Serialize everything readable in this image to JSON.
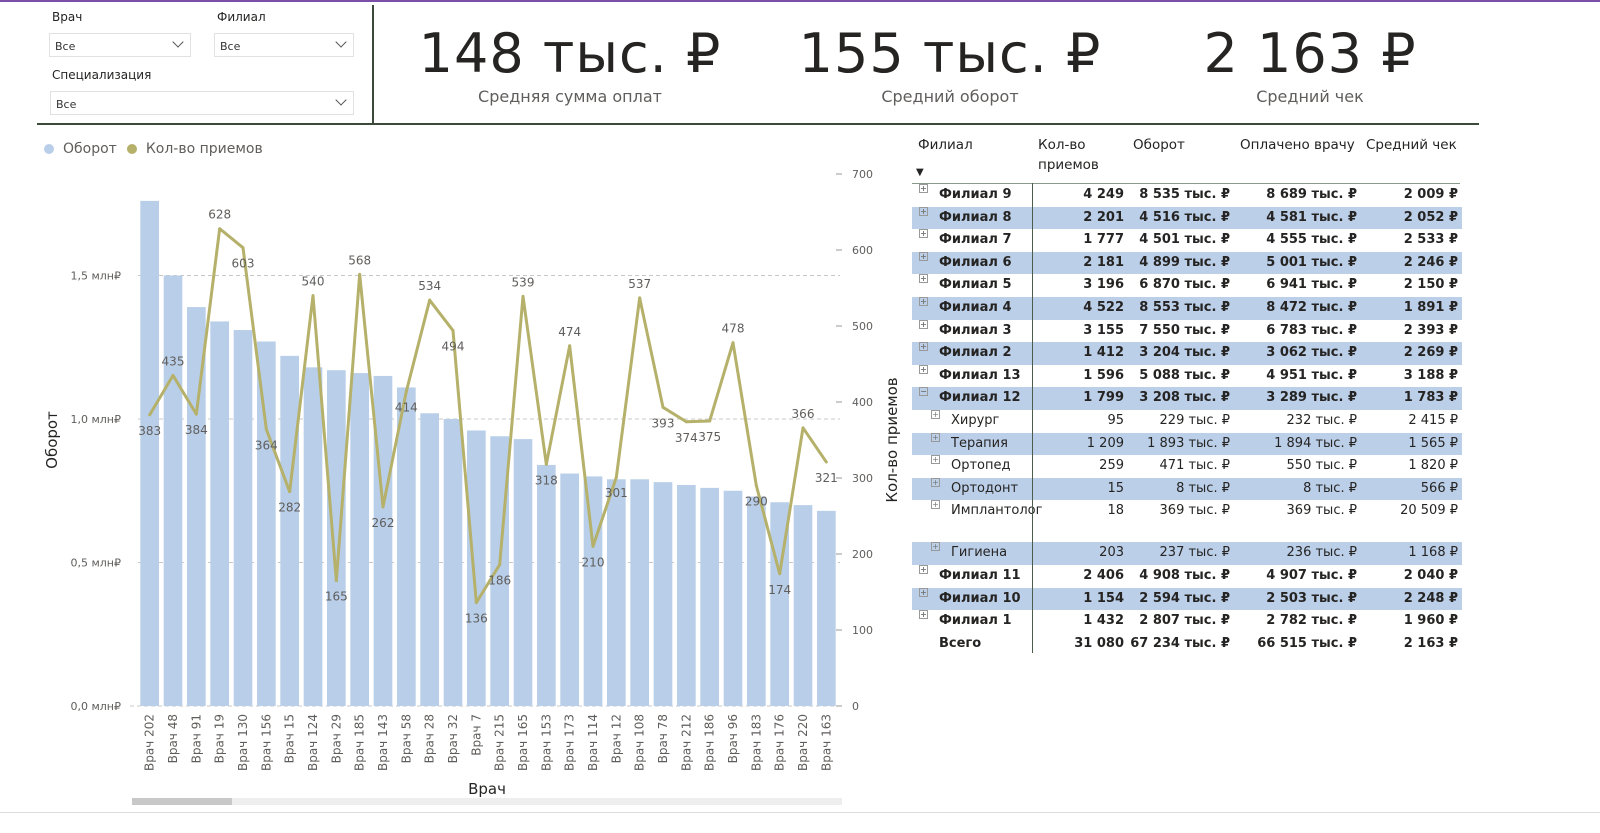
{
  "filters": {
    "doctor": {
      "label": "Врач",
      "value": "Все"
    },
    "branch": {
      "label": "Филиал",
      "value": "Все"
    },
    "specialization": {
      "label": "Специализация",
      "value": "Все"
    }
  },
  "kpis": [
    {
      "value": "148 тыс. ₽",
      "caption": "Средняя сумма оплат"
    },
    {
      "value": "155 тыс. ₽",
      "caption": "Средний оборот"
    },
    {
      "value": "2 163 ₽",
      "caption": "Средний чек"
    }
  ],
  "colors": {
    "bar": "#b9cfe9",
    "line": "#b5b16b",
    "band": "#bccfe8"
  },
  "chart_data": {
    "type": "bar+line",
    "legend": [
      "Оборот",
      "Кол-во приемов"
    ],
    "legend_position": "top-left",
    "xlabel": "Врач",
    "ylabel": "Оборот",
    "y2label": "Кол-во приемов",
    "categories": [
      "Врач 202",
      "Врач 48",
      "Врач 91",
      "Врач 19",
      "Врач 130",
      "Врач 156",
      "Врач 15",
      "Врач 124",
      "Врач 29",
      "Врач 185",
      "Врач 143",
      "Врач 58",
      "Врач 28",
      "Врач 32",
      "Врач 7",
      "Врач 215",
      "Врач 165",
      "Врач 153",
      "Врач 173",
      "Врач 114",
      "Врач 12",
      "Врач 108",
      "Врач 78",
      "Врач 212",
      "Врач 186",
      "Врач 96",
      "Врач 183",
      "Врач 176",
      "Врач 220",
      "Врач 163"
    ],
    "series": [
      {
        "name": "Оборот",
        "axis": "left",
        "unit": "млн ₽",
        "values": [
          1.76,
          1.5,
          1.39,
          1.34,
          1.31,
          1.27,
          1.22,
          1.18,
          1.17,
          1.16,
          1.15,
          1.11,
          1.02,
          1.0,
          0.96,
          0.94,
          0.93,
          0.84,
          0.81,
          0.8,
          0.79,
          0.79,
          0.78,
          0.77,
          0.76,
          0.75,
          0.73,
          0.71,
          0.7,
          0.68
        ]
      },
      {
        "name": "Кол-во приемов",
        "axis": "right",
        "values": [
          383,
          435,
          384,
          628,
          603,
          364,
          282,
          540,
          165,
          568,
          262,
          414,
          534,
          494,
          136,
          186,
          539,
          318,
          474,
          210,
          301,
          537,
          393,
          374,
          375,
          478,
          290,
          174,
          366,
          321
        ]
      }
    ],
    "y_ticks": [
      {
        "v": 0,
        "label": "0,0 млн₽"
      },
      {
        "v": 0.5,
        "label": "0,5 млн₽"
      },
      {
        "v": 1.0,
        "label": "1,0 млн₽"
      },
      {
        "v": 1.5,
        "label": "1,5 млн₽"
      }
    ],
    "y2_ticks": [
      0,
      100,
      200,
      300,
      400,
      500,
      600,
      700
    ],
    "ylim": [
      0,
      1.85
    ],
    "y2lim": [
      0,
      700
    ]
  },
  "table": {
    "headers": [
      "Филиал",
      "Кол-во приемов",
      "Оборот",
      "Оплачено врачу",
      "Средний чек"
    ],
    "rows": [
      {
        "name": "Филиал 9",
        "c": "4 249",
        "o": "8 535 тыс. ₽",
        "p": "8 689 тыс. ₽",
        "a": "2 009 ₽",
        "lvl": 0,
        "exp": "⊞"
      },
      {
        "name": "Филиал 8",
        "c": "2 201",
        "o": "4 516 тыс. ₽",
        "p": "4 581 тыс. ₽",
        "a": "2 052 ₽",
        "lvl": 0,
        "exp": "⊞"
      },
      {
        "name": "Филиал 7",
        "c": "1 777",
        "o": "4 501 тыс. ₽",
        "p": "4 555 тыс. ₽",
        "a": "2 533 ₽",
        "lvl": 0,
        "exp": "⊞"
      },
      {
        "name": "Филиал 6",
        "c": "2 181",
        "o": "4 899 тыс. ₽",
        "p": "5 001 тыс. ₽",
        "a": "2 246 ₽",
        "lvl": 0,
        "exp": "⊞"
      },
      {
        "name": "Филиал 5",
        "c": "3 196",
        "o": "6 870 тыс. ₽",
        "p": "6 941 тыс. ₽",
        "a": "2 150 ₽",
        "lvl": 0,
        "exp": "⊞"
      },
      {
        "name": "Филиал 4",
        "c": "4 522",
        "o": "8 553 тыс. ₽",
        "p": "8 472 тыс. ₽",
        "a": "1 891 ₽",
        "lvl": 0,
        "exp": "⊞"
      },
      {
        "name": "Филиал 3",
        "c": "3 155",
        "o": "7 550 тыс. ₽",
        "p": "6 783 тыс. ₽",
        "a": "2 393 ₽",
        "lvl": 0,
        "exp": "⊞"
      },
      {
        "name": "Филиал 2",
        "c": "1 412",
        "o": "3 204 тыс. ₽",
        "p": "3 062 тыс. ₽",
        "a": "2 269 ₽",
        "lvl": 0,
        "exp": "⊞"
      },
      {
        "name": "Филиал 13",
        "c": "1 596",
        "o": "5 088 тыс. ₽",
        "p": "4 951 тыс. ₽",
        "a": "3 188 ₽",
        "lvl": 0,
        "exp": "⊞"
      },
      {
        "name": "Филиал 12",
        "c": "1 799",
        "o": "3 208 тыс. ₽",
        "p": "3 289 тыс. ₽",
        "a": "1 783 ₽",
        "lvl": 0,
        "exp": "⊟"
      },
      {
        "name": "Хирург",
        "c": "95",
        "o": "229 тыс. ₽",
        "p": "232 тыс. ₽",
        "a": "2 415 ₽",
        "lvl": 1,
        "exp": "⊞"
      },
      {
        "name": "Терапия",
        "c": "1 209",
        "o": "1 893 тыс. ₽",
        "p": "1 894 тыс. ₽",
        "a": "1 565 ₽",
        "lvl": 1,
        "exp": "⊞"
      },
      {
        "name": "Ортопед",
        "c": "259",
        "o": "471 тыс. ₽",
        "p": "550 тыс. ₽",
        "a": "1 820 ₽",
        "lvl": 1,
        "exp": "⊞"
      },
      {
        "name": "Ортодонт",
        "c": "15",
        "o": "8 тыс. ₽",
        "p": "8 тыс. ₽",
        "a": "566 ₽",
        "lvl": 1,
        "exp": "⊞"
      },
      {
        "name": "Имплантолог",
        "c": "18",
        "o": "369 тыс. ₽",
        "p": "369 тыс. ₽",
        "a": "20 509 ₽",
        "lvl": 1,
        "exp": "⊞"
      },
      {
        "name": "Гигиена",
        "c": "203",
        "o": "237 тыс. ₽",
        "p": "236 тыс. ₽",
        "a": "1 168 ₽",
        "lvl": 1,
        "exp": "⊞"
      },
      {
        "name": "Филиал 11",
        "c": "2 406",
        "o": "4 908 тыс. ₽",
        "p": "4 907 тыс. ₽",
        "a": "2 040 ₽",
        "lvl": 0,
        "exp": "⊞"
      },
      {
        "name": "Филиал 10",
        "c": "1 154",
        "o": "2 594 тыс. ₽",
        "p": "2 503 тыс. ₽",
        "a": "2 248 ₽",
        "lvl": 0,
        "exp": "⊞"
      },
      {
        "name": "Филиал 1",
        "c": "1 432",
        "o": "2 807 тыс. ₽",
        "p": "2 782 тыс. ₽",
        "a": "1 960 ₽",
        "lvl": 0,
        "exp": "⊞"
      }
    ],
    "total": {
      "name": "Всего",
      "c": "31 080",
      "o": "67 234 тыс. ₽",
      "p": "66 515 тыс. ₽",
      "a": "2 163 ₽"
    }
  }
}
